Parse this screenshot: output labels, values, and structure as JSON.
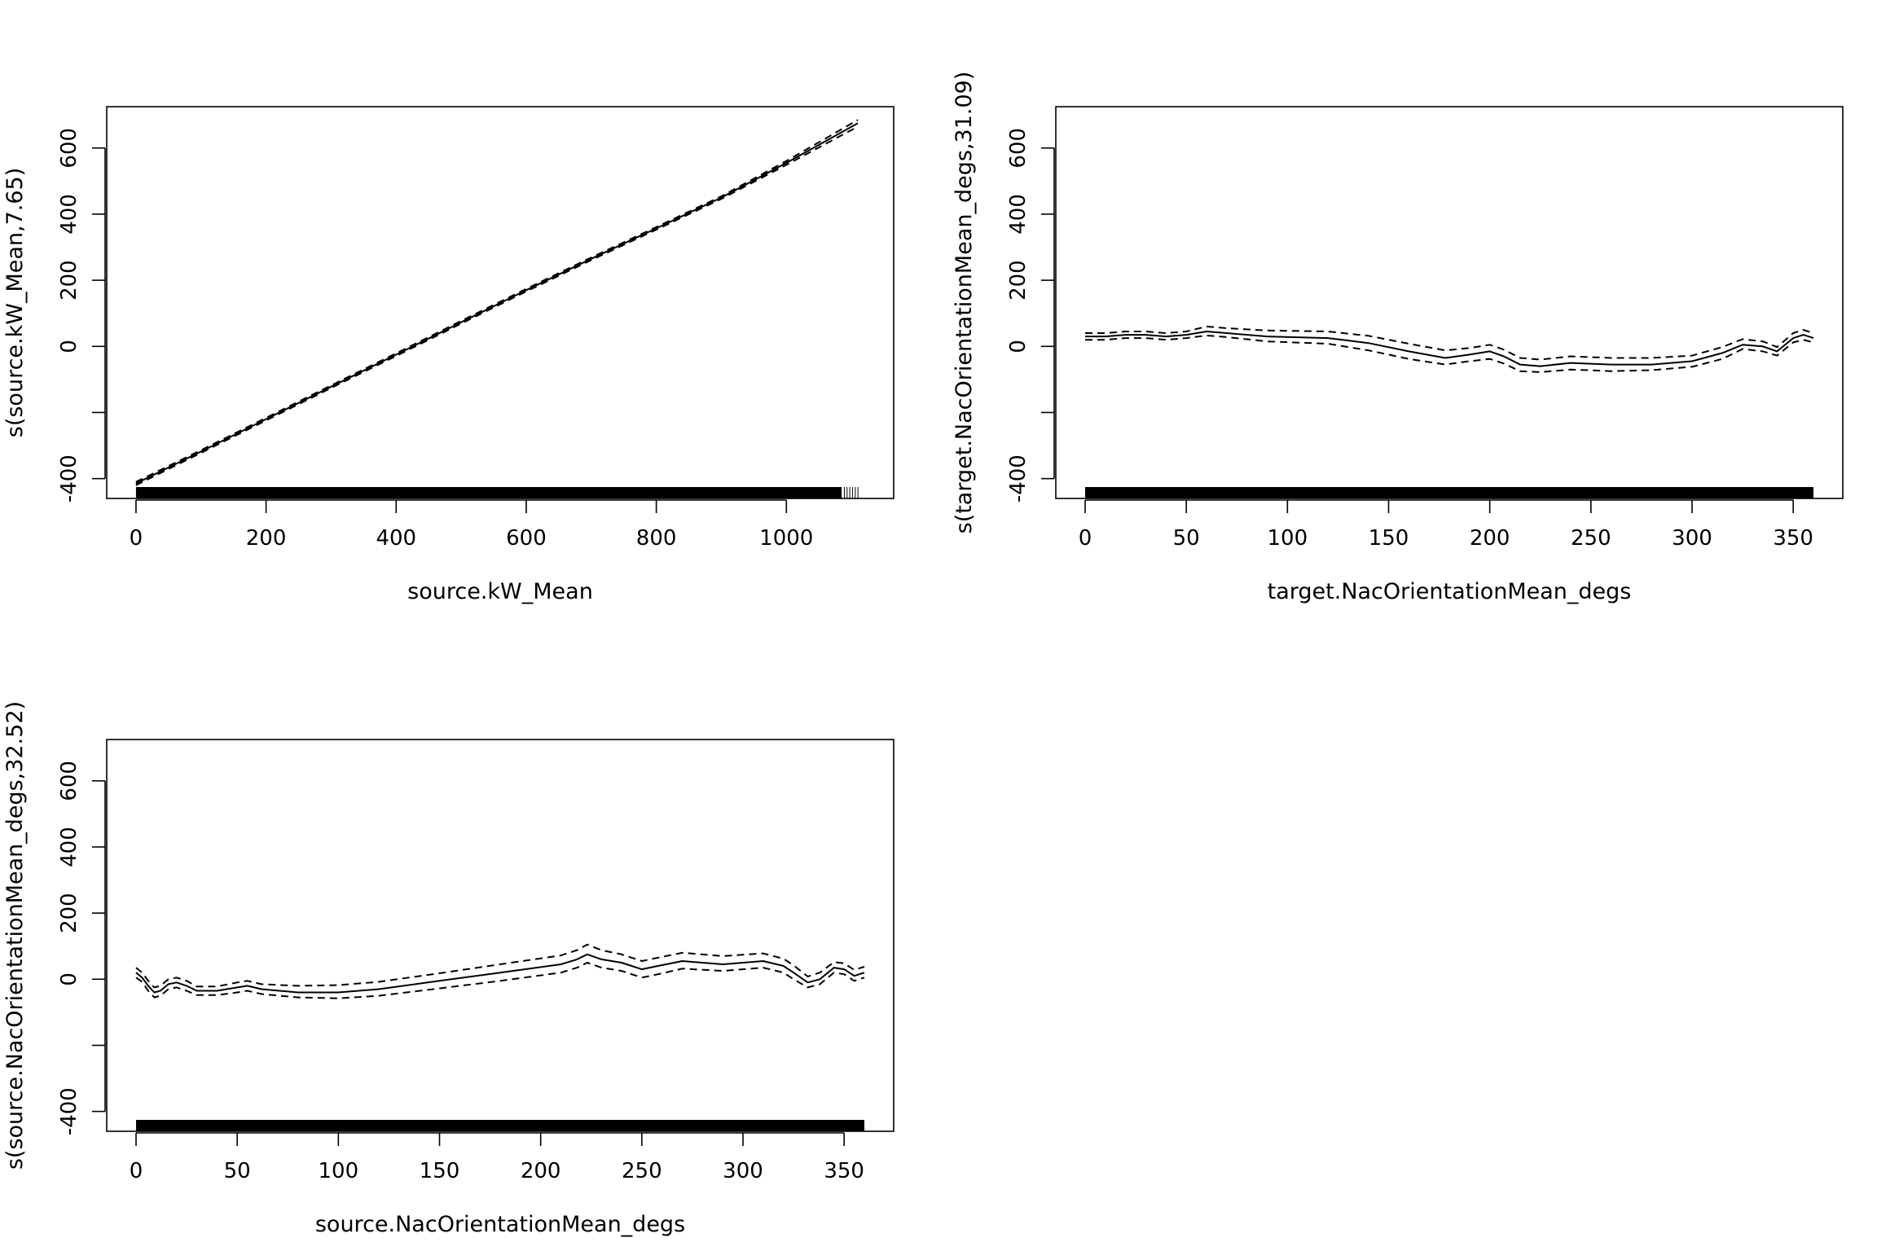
{
  "chart_data": [
    {
      "type": "line",
      "title": "",
      "xlabel": "source.kW_Mean",
      "ylabel": "s(source.kW_Mean,7.65)",
      "xlim": [
        -45,
        1165
      ],
      "ylim": [
        -460,
        725
      ],
      "xticks": [
        0,
        200,
        400,
        600,
        800,
        1000
      ],
      "yticks": [
        -400,
        -200,
        0,
        200,
        400,
        600
      ],
      "ytick_labels": [
        "-400",
        "",
        "0",
        "200",
        "400",
        "600"
      ],
      "grid": false,
      "legend": "none",
      "rug": {
        "range": [
          0,
          1110
        ],
        "dense_until": 1085
      },
      "series": [
        {
          "values": [
            [
              0,
              -415
            ],
            [
              100,
              -318
            ],
            [
              200,
              -220
            ],
            [
              300,
              -122
            ],
            [
              400,
              -25
            ],
            [
              500,
              73
            ],
            [
              600,
              170
            ],
            [
              700,
              265
            ],
            [
              800,
              357
            ],
            [
              900,
              450
            ],
            [
              1000,
              555
            ],
            [
              1110,
              675
            ]
          ]
        },
        {
          "values": [
            [
              0,
              -420
            ],
            [
              100,
              -322
            ],
            [
              200,
              -224
            ],
            [
              300,
              -126
            ],
            [
              400,
              -29
            ],
            [
              500,
              69
            ],
            [
              600,
              166
            ],
            [
              700,
              261
            ],
            [
              800,
              353
            ],
            [
              900,
              446
            ],
            [
              1000,
              549
            ],
            [
              1110,
              665
            ]
          ],
          "style": "dashed"
        },
        {
          "values": [
            [
              0,
              -410
            ],
            [
              100,
              -314
            ],
            [
              200,
              -216
            ],
            [
              300,
              -118
            ],
            [
              400,
              -21
            ],
            [
              500,
              77
            ],
            [
              600,
              174
            ],
            [
              700,
              269
            ],
            [
              800,
              361
            ],
            [
              900,
              454
            ],
            [
              1000,
              561
            ],
            [
              1110,
              685
            ]
          ],
          "style": "dashed"
        }
      ]
    },
    {
      "type": "line",
      "title": "",
      "xlabel": "target.NacOrientationMean_degs",
      "ylabel": "s(target.NacOrientationMean_degs,31.09)",
      "xlim": [
        -14.5,
        374.5
      ],
      "ylim": [
        -460,
        725
      ],
      "xticks": [
        0,
        50,
        100,
        150,
        200,
        250,
        300,
        350
      ],
      "yticks": [
        -400,
        -200,
        0,
        200,
        400,
        600
      ],
      "ytick_labels": [
        "-400",
        "",
        "0",
        "200",
        "400",
        "600"
      ],
      "grid": false,
      "legend": "none",
      "rug": {
        "range": [
          0,
          360
        ],
        "dense_until": 360
      },
      "series": [
        {
          "values": [
            [
              0,
              30
            ],
            [
              10,
              30
            ],
            [
              20,
              35
            ],
            [
              30,
              35
            ],
            [
              40,
              30
            ],
            [
              50,
              35
            ],
            [
              60,
              45
            ],
            [
              70,
              40
            ],
            [
              90,
              30
            ],
            [
              120,
              25
            ],
            [
              140,
              10
            ],
            [
              160,
              -15
            ],
            [
              178,
              -35
            ],
            [
              190,
              -25
            ],
            [
              200,
              -15
            ],
            [
              207,
              -30
            ],
            [
              215,
              -55
            ],
            [
              225,
              -60
            ],
            [
              240,
              -50
            ],
            [
              260,
              -55
            ],
            [
              280,
              -55
            ],
            [
              300,
              -45
            ],
            [
              315,
              -20
            ],
            [
              325,
              5
            ],
            [
              335,
              0
            ],
            [
              342,
              -15
            ],
            [
              350,
              25
            ],
            [
              355,
              35
            ],
            [
              360,
              25
            ]
          ]
        },
        {
          "values": [
            [
              0,
              20
            ],
            [
              10,
              20
            ],
            [
              20,
              25
            ],
            [
              30,
              25
            ],
            [
              40,
              20
            ],
            [
              50,
              25
            ],
            [
              60,
              33
            ],
            [
              70,
              28
            ],
            [
              90,
              15
            ],
            [
              120,
              8
            ],
            [
              140,
              -12
            ],
            [
              160,
              -38
            ],
            [
              178,
              -55
            ],
            [
              190,
              -45
            ],
            [
              200,
              -38
            ],
            [
              207,
              -52
            ],
            [
              215,
              -75
            ],
            [
              225,
              -78
            ],
            [
              240,
              -70
            ],
            [
              260,
              -75
            ],
            [
              280,
              -72
            ],
            [
              300,
              -62
            ],
            [
              315,
              -38
            ],
            [
              325,
              -8
            ],
            [
              335,
              -15
            ],
            [
              342,
              -28
            ],
            [
              350,
              12
            ],
            [
              355,
              20
            ],
            [
              360,
              12
            ]
          ],
          "style": "dashed"
        },
        {
          "values": [
            [
              0,
              40
            ],
            [
              10,
              40
            ],
            [
              20,
              45
            ],
            [
              30,
              45
            ],
            [
              40,
              40
            ],
            [
              50,
              45
            ],
            [
              60,
              60
            ],
            [
              70,
              55
            ],
            [
              90,
              48
            ],
            [
              120,
              45
            ],
            [
              140,
              32
            ],
            [
              160,
              8
            ],
            [
              178,
              -12
            ],
            [
              190,
              -5
            ],
            [
              200,
              5
            ],
            [
              207,
              -10
            ],
            [
              215,
              -35
            ],
            [
              225,
              -40
            ],
            [
              240,
              -30
            ],
            [
              260,
              -35
            ],
            [
              280,
              -35
            ],
            [
              300,
              -28
            ],
            [
              315,
              -2
            ],
            [
              325,
              22
            ],
            [
              335,
              15
            ],
            [
              342,
              -2
            ],
            [
              350,
              40
            ],
            [
              355,
              50
            ],
            [
              360,
              40
            ]
          ],
          "style": "dashed"
        }
      ]
    },
    {
      "type": "line",
      "title": "",
      "xlabel": "source.NacOrientationMean_degs",
      "ylabel": "s(source.NacOrientationMean_degs,32.52)",
      "xlim": [
        -14.5,
        374.5
      ],
      "ylim": [
        -460,
        725
      ],
      "xticks": [
        0,
        50,
        100,
        150,
        200,
        250,
        300,
        350
      ],
      "yticks": [
        -400,
        -200,
        0,
        200,
        400,
        600
      ],
      "ytick_labels": [
        "-400",
        "",
        "0",
        "200",
        "400",
        "600"
      ],
      "grid": false,
      "legend": "none",
      "rug": {
        "range": [
          0,
          360
        ],
        "dense_until": 360
      },
      "series": [
        {
          "values": [
            [
              0,
              20
            ],
            [
              3,
              5
            ],
            [
              6,
              -20
            ],
            [
              9,
              -40
            ],
            [
              12,
              -35
            ],
            [
              16,
              -15
            ],
            [
              20,
              -10
            ],
            [
              25,
              -20
            ],
            [
              30,
              -35
            ],
            [
              40,
              -35
            ],
            [
              50,
              -25
            ],
            [
              55,
              -20
            ],
            [
              62,
              -30
            ],
            [
              80,
              -40
            ],
            [
              100,
              -40
            ],
            [
              120,
              -30
            ],
            [
              150,
              -5
            ],
            [
              180,
              20
            ],
            [
              210,
              45
            ],
            [
              218,
              60
            ],
            [
              223,
              75
            ],
            [
              230,
              60
            ],
            [
              240,
              50
            ],
            [
              250,
              30
            ],
            [
              258,
              40
            ],
            [
              270,
              55
            ],
            [
              290,
              45
            ],
            [
              310,
              55
            ],
            [
              320,
              40
            ],
            [
              325,
              20
            ],
            [
              332,
              -10
            ],
            [
              338,
              0
            ],
            [
              345,
              35
            ],
            [
              350,
              30
            ],
            [
              355,
              10
            ],
            [
              360,
              20
            ]
          ]
        },
        {
          "values": [
            [
              0,
              5
            ],
            [
              3,
              -8
            ],
            [
              6,
              -35
            ],
            [
              9,
              -55
            ],
            [
              12,
              -50
            ],
            [
              16,
              -30
            ],
            [
              20,
              -25
            ],
            [
              25,
              -35
            ],
            [
              30,
              -48
            ],
            [
              40,
              -48
            ],
            [
              50,
              -40
            ],
            [
              55,
              -35
            ],
            [
              62,
              -45
            ],
            [
              80,
              -55
            ],
            [
              100,
              -58
            ],
            [
              120,
              -50
            ],
            [
              150,
              -28
            ],
            [
              180,
              -5
            ],
            [
              210,
              20
            ],
            [
              218,
              35
            ],
            [
              223,
              50
            ],
            [
              230,
              35
            ],
            [
              240,
              25
            ],
            [
              250,
              5
            ],
            [
              258,
              15
            ],
            [
              270,
              32
            ],
            [
              290,
              25
            ],
            [
              310,
              35
            ],
            [
              320,
              20
            ],
            [
              325,
              0
            ],
            [
              332,
              -25
            ],
            [
              338,
              -15
            ],
            [
              345,
              20
            ],
            [
              350,
              15
            ],
            [
              355,
              -5
            ],
            [
              360,
              5
            ]
          ],
          "style": "dashed"
        },
        {
          "values": [
            [
              0,
              35
            ],
            [
              3,
              20
            ],
            [
              6,
              -5
            ],
            [
              9,
              -25
            ],
            [
              12,
              -20
            ],
            [
              16,
              0
            ],
            [
              20,
              5
            ],
            [
              25,
              -5
            ],
            [
              30,
              -22
            ],
            [
              40,
              -22
            ],
            [
              50,
              -10
            ],
            [
              55,
              -5
            ],
            [
              62,
              -15
            ],
            [
              80,
              -20
            ],
            [
              100,
              -18
            ],
            [
              120,
              -8
            ],
            [
              150,
              18
            ],
            [
              180,
              45
            ],
            [
              210,
              72
            ],
            [
              218,
              88
            ],
            [
              223,
              105
            ],
            [
              230,
              88
            ],
            [
              240,
              75
            ],
            [
              250,
              55
            ],
            [
              258,
              65
            ],
            [
              270,
              80
            ],
            [
              290,
              70
            ],
            [
              310,
              78
            ],
            [
              320,
              62
            ],
            [
              325,
              42
            ],
            [
              332,
              8
            ],
            [
              338,
              20
            ],
            [
              345,
              52
            ],
            [
              350,
              48
            ],
            [
              355,
              28
            ],
            [
              360,
              38
            ]
          ],
          "style": "dashed"
        }
      ]
    }
  ]
}
